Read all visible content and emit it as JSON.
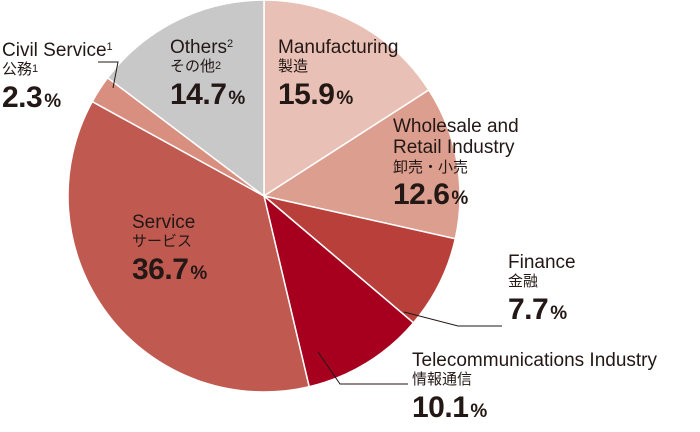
{
  "chart_data": {
    "type": "pie",
    "slices": [
      {
        "name": "Manufacturing",
        "name_jp": "製造",
        "value": 15.9,
        "color": "#e9c0b5"
      },
      {
        "name": "Wholesale and Retail Industry",
        "name_jp": "卸売・小売",
        "value": 12.6,
        "color": "#dc9e8e"
      },
      {
        "name": "Finance",
        "name_jp": "金融",
        "value": 7.7,
        "color": "#b9403a"
      },
      {
        "name": "Telecommunications Industry",
        "name_jp": "情報通信",
        "value": 10.1,
        "color": "#a7001f"
      },
      {
        "name": "Service",
        "name_jp": "サービス",
        "value": 36.7,
        "color": "#c05a50"
      },
      {
        "name": "Civil Service",
        "name_jp": "公務",
        "note": "1",
        "value": 2.3,
        "color": "#d98f80"
      },
      {
        "name": "Others",
        "name_jp": "その他",
        "note": "2",
        "value": 14.7,
        "color": "#c8c8c8"
      }
    ],
    "unit": "%"
  }
}
